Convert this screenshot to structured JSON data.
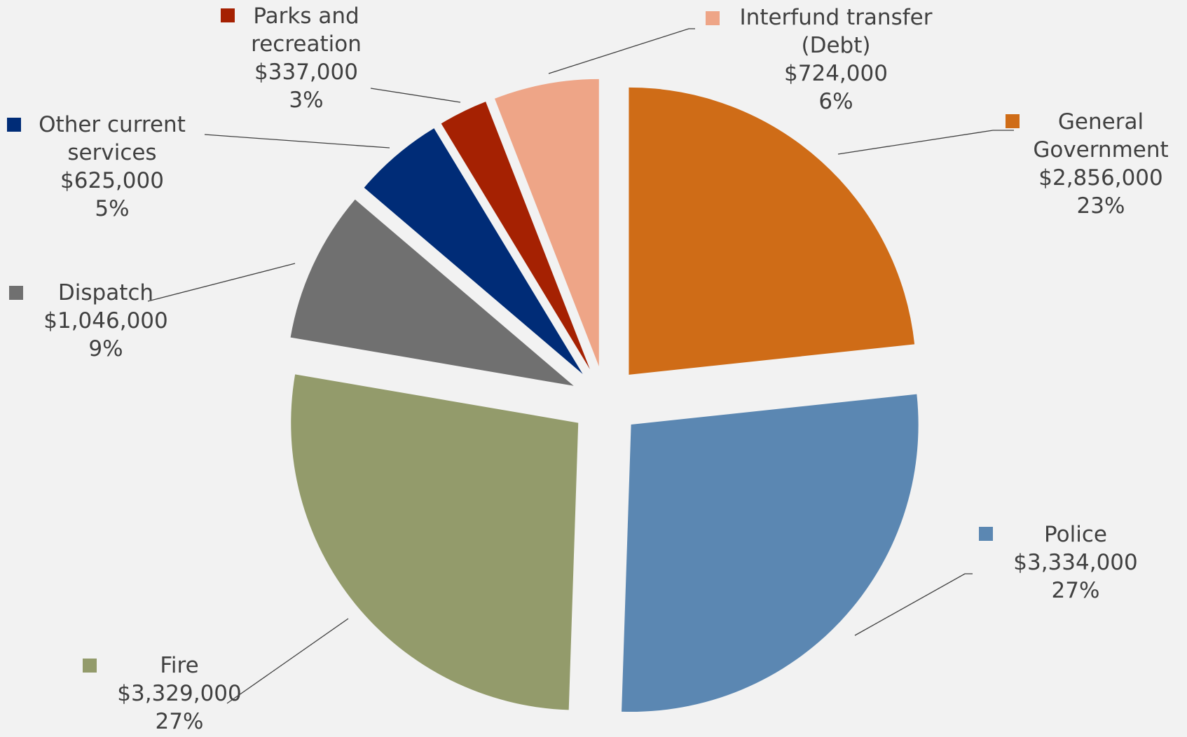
{
  "chart_data": {
    "type": "pie",
    "categories": [
      "General Government",
      "Police",
      "Fire",
      "Dispatch",
      "Other current services",
      "Parks and recreation",
      "Interfund transfer (Debt)"
    ],
    "values": [
      2856000,
      3334000,
      3329000,
      1046000,
      625000,
      337000,
      724000
    ],
    "value_labels": [
      "$2,856,000",
      "$3,334,000",
      "$3,329,000",
      "$1,046,000",
      "$625,000",
      "$337,000",
      "$724,000"
    ],
    "percent_labels": [
      "23%",
      "27%",
      "27%",
      "9%",
      "5%",
      "3%",
      "6%"
    ],
    "colors": [
      "#cf6c17",
      "#5b87b2",
      "#939b6b",
      "#707070",
      "#002c77",
      "#a52102",
      "#eea587"
    ]
  }
}
